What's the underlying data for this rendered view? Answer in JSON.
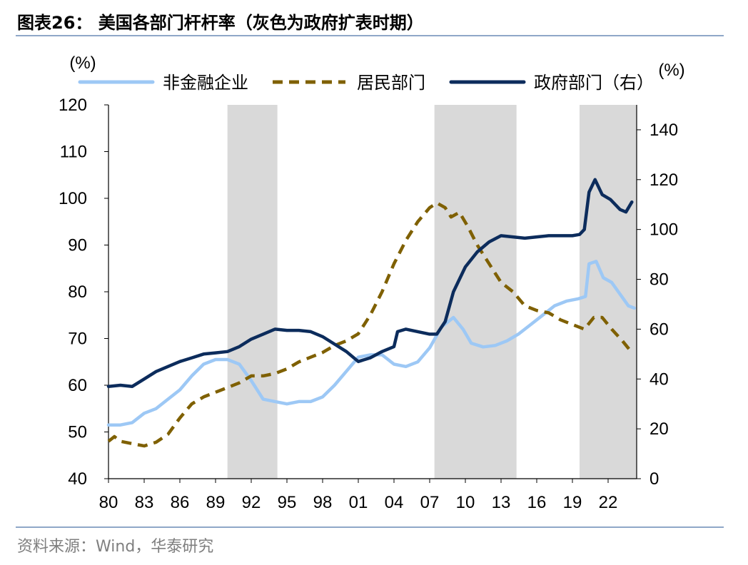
{
  "header": {
    "title": "图表26：  美国各部门杆杆率（灰色为政府扩表时期）"
  },
  "footer": {
    "source": "资料来源：Wind，华泰研究"
  },
  "colors": {
    "nonfinancial": "#9dc8f5",
    "household": "#7f6000",
    "government": "#0c2c5c",
    "shade": "#d9d9d9"
  },
  "chart_data": {
    "type": "line",
    "left_unit": "(%)",
    "right_unit": "(%)",
    "x_tick_labels": [
      "80",
      "83",
      "86",
      "89",
      "92",
      "95",
      "98",
      "01",
      "04",
      "07",
      "10",
      "13",
      "16",
      "19",
      "22"
    ],
    "x_ticks_years": [
      1980,
      1983,
      1986,
      1989,
      1992,
      1995,
      1998,
      2001,
      2004,
      2007,
      2010,
      2013,
      2016,
      2019,
      2022
    ],
    "xlim": [
      1980,
      2024.4
    ],
    "ylim_left": [
      40,
      120
    ],
    "y_ticks_left": [
      40,
      50,
      60,
      70,
      80,
      90,
      100,
      110,
      120
    ],
    "ylim_right": [
      0,
      150
    ],
    "y_ticks_right": [
      0,
      20,
      40,
      60,
      80,
      100,
      120,
      140
    ],
    "shaded_periods": [
      [
        1990.0,
        1994.2
      ],
      [
        2007.4,
        2014.3
      ],
      [
        2019.6,
        2024.4
      ]
    ],
    "series": [
      {
        "name": "非金融企业",
        "axis": "left",
        "style": "solid",
        "color": "#9dc8f5",
        "points": [
          [
            1980,
            51.5
          ],
          [
            1981,
            51.5
          ],
          [
            1982,
            52
          ],
          [
            1983,
            54
          ],
          [
            1984,
            55
          ],
          [
            1985,
            57
          ],
          [
            1986,
            59
          ],
          [
            1987,
            62
          ],
          [
            1988,
            64.5
          ],
          [
            1989,
            65.5
          ],
          [
            1990,
            65.5
          ],
          [
            1991,
            64.5
          ],
          [
            1992,
            61
          ],
          [
            1993,
            57
          ],
          [
            1994,
            56.5
          ],
          [
            1995,
            56
          ],
          [
            1996,
            56.5
          ],
          [
            1997,
            56.5
          ],
          [
            1998,
            57.5
          ],
          [
            1999,
            60
          ],
          [
            2000,
            63
          ],
          [
            2001,
            66
          ],
          [
            2002,
            66.5
          ],
          [
            2003,
            66.5
          ],
          [
            2004,
            64.5
          ],
          [
            2005,
            64
          ],
          [
            2006,
            65
          ],
          [
            2007,
            68
          ],
          [
            2008,
            72.5
          ],
          [
            2009,
            74.5
          ],
          [
            2009.8,
            72
          ],
          [
            2010.5,
            69
          ],
          [
            2011.5,
            68.2
          ],
          [
            2012.5,
            68.5
          ],
          [
            2013.5,
            69.5
          ],
          [
            2014.5,
            71
          ],
          [
            2015.5,
            73
          ],
          [
            2016.5,
            75
          ],
          [
            2017.5,
            77
          ],
          [
            2018.5,
            78
          ],
          [
            2019.5,
            78.5
          ],
          [
            2020.1,
            79
          ],
          [
            2020.4,
            86
          ],
          [
            2021,
            86.5
          ],
          [
            2021.6,
            83
          ],
          [
            2022.3,
            82
          ],
          [
            2023,
            79.5
          ],
          [
            2023.7,
            77
          ],
          [
            2024.2,
            76.5
          ]
        ]
      },
      {
        "name": "居民部门",
        "axis": "left",
        "style": "dashed",
        "color": "#7f6000",
        "points": [
          [
            1980,
            48
          ],
          [
            1980.5,
            49
          ],
          [
            1981,
            48
          ],
          [
            1982,
            47.5
          ],
          [
            1983,
            47
          ],
          [
            1984,
            47.8
          ],
          [
            1985,
            49.5
          ],
          [
            1986,
            53
          ],
          [
            1987,
            56
          ],
          [
            1988,
            57.5
          ],
          [
            1989,
            58.5
          ],
          [
            1990,
            59.5
          ],
          [
            1991,
            60.5
          ],
          [
            1992,
            62
          ],
          [
            1993,
            62
          ],
          [
            1994,
            62.5
          ],
          [
            1995,
            63.5
          ],
          [
            1996,
            65
          ],
          [
            1997,
            66
          ],
          [
            1998,
            67
          ],
          [
            1999,
            68.5
          ],
          [
            2000,
            69.5
          ],
          [
            2001,
            71
          ],
          [
            2002,
            75
          ],
          [
            2003,
            80
          ],
          [
            2004,
            86
          ],
          [
            2005,
            91
          ],
          [
            2006,
            95
          ],
          [
            2007,
            98
          ],
          [
            2007.6,
            99
          ],
          [
            2008.3,
            98
          ],
          [
            2008.8,
            96
          ],
          [
            2009.5,
            97
          ],
          [
            2010.2,
            94
          ],
          [
            2011,
            90
          ],
          [
            2012,
            86
          ],
          [
            2013,
            82
          ],
          [
            2014,
            80
          ],
          [
            2015,
            77
          ],
          [
            2016,
            76
          ],
          [
            2017,
            75.5
          ],
          [
            2018,
            74
          ],
          [
            2019,
            73
          ],
          [
            2020,
            72
          ],
          [
            2020.8,
            74.5
          ],
          [
            2021.5,
            74.5
          ],
          [
            2022.3,
            72
          ],
          [
            2023.2,
            69.5
          ],
          [
            2024,
            67
          ]
        ]
      },
      {
        "name": "政府部门（右）",
        "axis": "right",
        "style": "solid",
        "color": "#0c2c5c",
        "points": [
          [
            1980,
            37
          ],
          [
            1981,
            37.5
          ],
          [
            1982,
            37
          ],
          [
            1983,
            40
          ],
          [
            1984,
            43
          ],
          [
            1985,
            45
          ],
          [
            1986,
            47
          ],
          [
            1987,
            48.5
          ],
          [
            1988,
            50
          ],
          [
            1989,
            50.5
          ],
          [
            1990,
            51
          ],
          [
            1991,
            53
          ],
          [
            1992,
            56
          ],
          [
            1993,
            58
          ],
          [
            1994,
            60
          ],
          [
            1995,
            59.5
          ],
          [
            1996,
            59.5
          ],
          [
            1997,
            59
          ],
          [
            1998,
            57
          ],
          [
            1999,
            54
          ],
          [
            2000,
            51
          ],
          [
            2001,
            47
          ],
          [
            2002,
            48.5
          ],
          [
            2003,
            51
          ],
          [
            2004,
            53
          ],
          [
            2004.3,
            59
          ],
          [
            2005,
            60
          ],
          [
            2006,
            59
          ],
          [
            2007,
            58
          ],
          [
            2007.6,
            58
          ],
          [
            2008.3,
            63
          ],
          [
            2009,
            75
          ],
          [
            2010,
            85
          ],
          [
            2011,
            91
          ],
          [
            2012,
            95
          ],
          [
            2013,
            97.5
          ],
          [
            2014,
            97
          ],
          [
            2015,
            96.5
          ],
          [
            2016,
            97
          ],
          [
            2017,
            97.5
          ],
          [
            2018,
            97.5
          ],
          [
            2019,
            97.5
          ],
          [
            2019.6,
            98
          ],
          [
            2020,
            100
          ],
          [
            2020.4,
            115
          ],
          [
            2020.9,
            120
          ],
          [
            2021.5,
            114
          ],
          [
            2022.2,
            112
          ],
          [
            2023,
            108
          ],
          [
            2023.5,
            107
          ],
          [
            2024,
            111
          ]
        ]
      }
    ],
    "legend": "top"
  }
}
